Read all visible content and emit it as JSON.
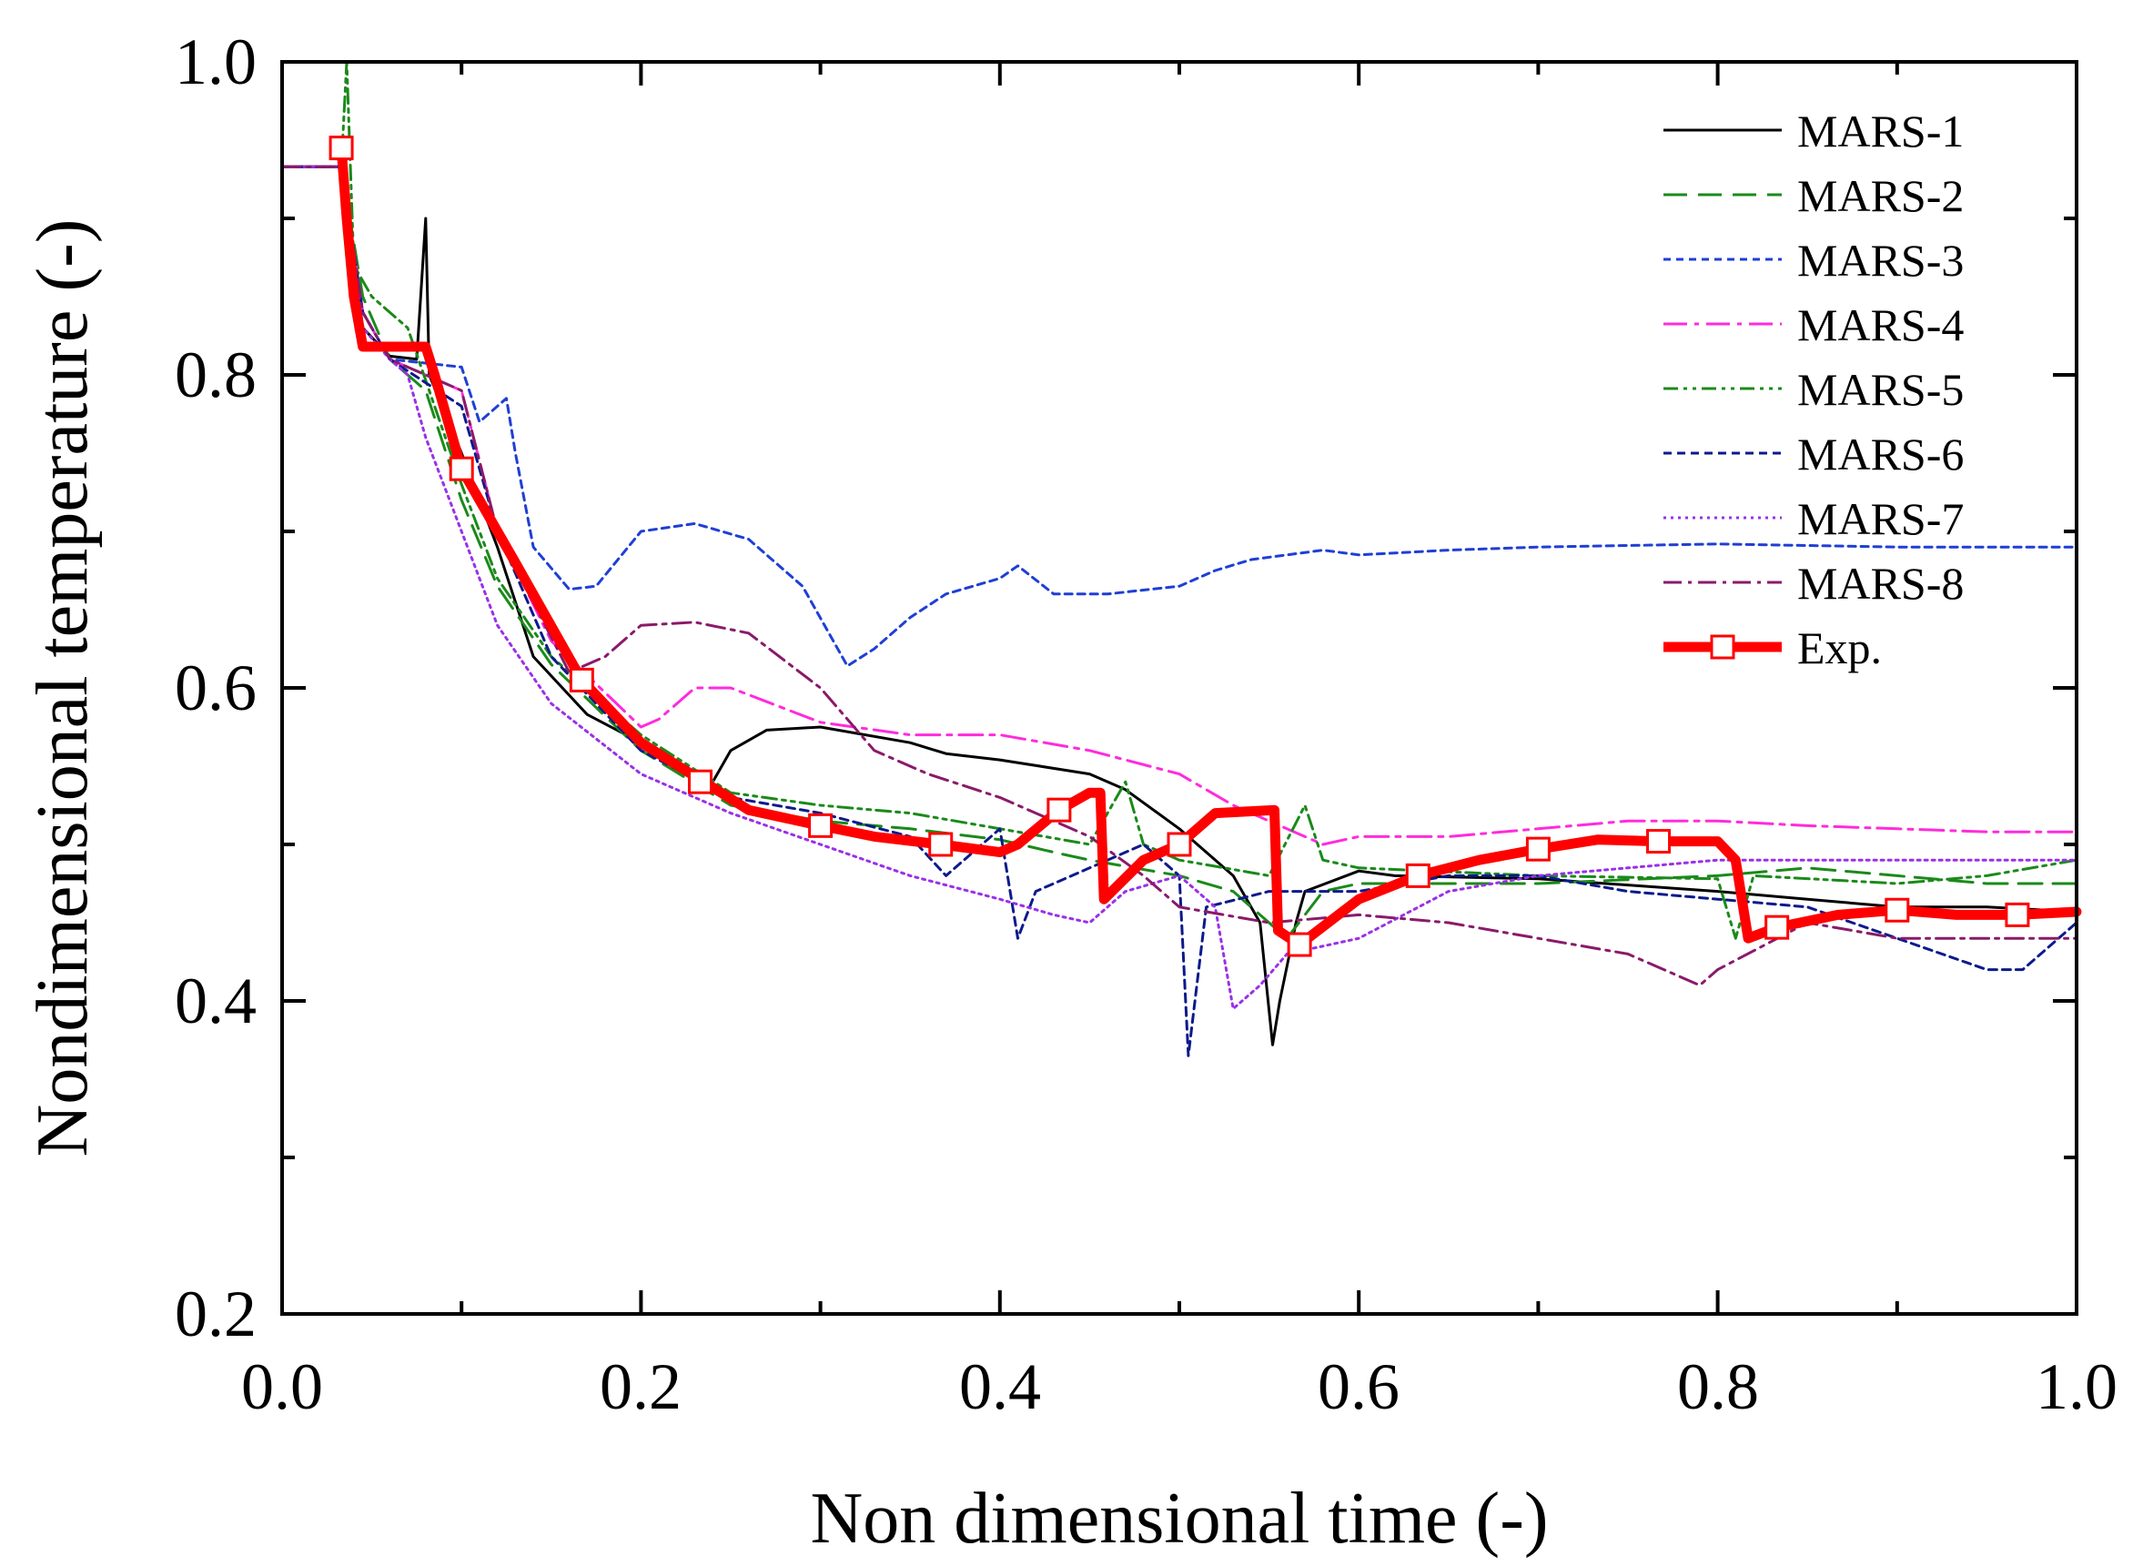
{
  "chart_data": {
    "type": "line",
    "title": "",
    "xlabel": "Non dimensional time (-)",
    "ylabel": "Nondimensional temperature (-)",
    "xlim": [
      0.0,
      1.0
    ],
    "ylim": [
      0.2,
      1.0
    ],
    "xticks": [
      "0.0",
      "0.2",
      "0.4",
      "0.6",
      "0.8",
      "1.0"
    ],
    "yticks": [
      "0.2",
      "0.4",
      "0.6",
      "0.8",
      "1.0"
    ],
    "legend_position": "top-right",
    "series": [
      {
        "name": "MARS-1",
        "color": "#000000",
        "dash": "solid",
        "width": 3,
        "points": [
          [
            0.0,
            0.933
          ],
          [
            0.033,
            0.933
          ],
          [
            0.045,
            0.83
          ],
          [
            0.06,
            0.812
          ],
          [
            0.075,
            0.81
          ],
          [
            0.08,
            0.9
          ],
          [
            0.082,
            0.8
          ],
          [
            0.1,
            0.75
          ],
          [
            0.12,
            0.69
          ],
          [
            0.14,
            0.62
          ],
          [
            0.17,
            0.583
          ],
          [
            0.2,
            0.565
          ],
          [
            0.24,
            0.54
          ],
          [
            0.25,
            0.56
          ],
          [
            0.27,
            0.573
          ],
          [
            0.3,
            0.575
          ],
          [
            0.35,
            0.565
          ],
          [
            0.37,
            0.558
          ],
          [
            0.4,
            0.554
          ],
          [
            0.45,
            0.545
          ],
          [
            0.47,
            0.535
          ],
          [
            0.5,
            0.51
          ],
          [
            0.53,
            0.48
          ],
          [
            0.545,
            0.45
          ],
          [
            0.552,
            0.372
          ],
          [
            0.556,
            0.4
          ],
          [
            0.565,
            0.45
          ],
          [
            0.57,
            0.47
          ],
          [
            0.6,
            0.483
          ],
          [
            0.62,
            0.48
          ],
          [
            0.7,
            0.478
          ],
          [
            0.8,
            0.47
          ],
          [
            0.85,
            0.465
          ],
          [
            0.9,
            0.46
          ],
          [
            0.95,
            0.46
          ],
          [
            1.0,
            0.457
          ]
        ]
      },
      {
        "name": "MARS-2",
        "color": "#1a8a1a",
        "dash": "26,12",
        "width": 3,
        "points": [
          [
            0.0,
            0.933
          ],
          [
            0.033,
            0.933
          ],
          [
            0.045,
            0.85
          ],
          [
            0.06,
            0.81
          ],
          [
            0.08,
            0.79
          ],
          [
            0.1,
            0.72
          ],
          [
            0.12,
            0.665
          ],
          [
            0.15,
            0.615
          ],
          [
            0.2,
            0.56
          ],
          [
            0.25,
            0.525
          ],
          [
            0.3,
            0.515
          ],
          [
            0.35,
            0.51
          ],
          [
            0.4,
            0.503
          ],
          [
            0.43,
            0.495
          ],
          [
            0.45,
            0.49
          ],
          [
            0.5,
            0.48
          ],
          [
            0.53,
            0.47
          ],
          [
            0.56,
            0.44
          ],
          [
            0.58,
            0.47
          ],
          [
            0.6,
            0.475
          ],
          [
            0.7,
            0.475
          ],
          [
            0.8,
            0.48
          ],
          [
            0.85,
            0.485
          ],
          [
            0.9,
            0.48
          ],
          [
            0.95,
            0.475
          ],
          [
            1.0,
            0.475
          ]
        ]
      },
      {
        "name": "MARS-3",
        "color": "#1f3fd6",
        "dash": "8,6",
        "width": 3,
        "points": [
          [
            0.0,
            0.933
          ],
          [
            0.033,
            0.933
          ],
          [
            0.045,
            0.84
          ],
          [
            0.06,
            0.81
          ],
          [
            0.1,
            0.805
          ],
          [
            0.11,
            0.77
          ],
          [
            0.125,
            0.785
          ],
          [
            0.13,
            0.75
          ],
          [
            0.14,
            0.69
          ],
          [
            0.16,
            0.663
          ],
          [
            0.175,
            0.665
          ],
          [
            0.2,
            0.7
          ],
          [
            0.23,
            0.705
          ],
          [
            0.26,
            0.695
          ],
          [
            0.29,
            0.665
          ],
          [
            0.315,
            0.614
          ],
          [
            0.33,
            0.625
          ],
          [
            0.35,
            0.645
          ],
          [
            0.37,
            0.66
          ],
          [
            0.4,
            0.67
          ],
          [
            0.41,
            0.678
          ],
          [
            0.43,
            0.66
          ],
          [
            0.46,
            0.66
          ],
          [
            0.5,
            0.665
          ],
          [
            0.52,
            0.675
          ],
          [
            0.54,
            0.682
          ],
          [
            0.58,
            0.688
          ],
          [
            0.6,
            0.685
          ],
          [
            0.65,
            0.688
          ],
          [
            0.7,
            0.69
          ],
          [
            0.8,
            0.692
          ],
          [
            0.9,
            0.69
          ],
          [
            1.0,
            0.69
          ]
        ]
      },
      {
        "name": "MARS-4",
        "color": "#ff2bdc",
        "dash": "26,8,5,8",
        "width": 3,
        "points": [
          [
            0.0,
            0.933
          ],
          [
            0.033,
            0.933
          ],
          [
            0.045,
            0.84
          ],
          [
            0.06,
            0.81
          ],
          [
            0.1,
            0.79
          ],
          [
            0.12,
            0.7
          ],
          [
            0.15,
            0.63
          ],
          [
            0.2,
            0.575
          ],
          [
            0.21,
            0.58
          ],
          [
            0.23,
            0.6
          ],
          [
            0.25,
            0.6
          ],
          [
            0.3,
            0.578
          ],
          [
            0.35,
            0.57
          ],
          [
            0.4,
            0.57
          ],
          [
            0.45,
            0.56
          ],
          [
            0.5,
            0.545
          ],
          [
            0.53,
            0.525
          ],
          [
            0.55,
            0.515
          ],
          [
            0.58,
            0.5
          ],
          [
            0.6,
            0.505
          ],
          [
            0.65,
            0.505
          ],
          [
            0.7,
            0.51
          ],
          [
            0.75,
            0.515
          ],
          [
            0.8,
            0.515
          ],
          [
            0.85,
            0.512
          ],
          [
            0.9,
            0.51
          ],
          [
            0.95,
            0.508
          ],
          [
            1.0,
            0.508
          ]
        ]
      },
      {
        "name": "MARS-5",
        "color": "#1a8a1a",
        "dash": "16,6,4,6,4,6",
        "width": 3,
        "points": [
          [
            0.0,
            0.933
          ],
          [
            0.033,
            0.933
          ],
          [
            0.036,
            1.0
          ],
          [
            0.04,
            0.87
          ],
          [
            0.05,
            0.85
          ],
          [
            0.07,
            0.83
          ],
          [
            0.1,
            0.73
          ],
          [
            0.12,
            0.67
          ],
          [
            0.15,
            0.62
          ],
          [
            0.2,
            0.57
          ],
          [
            0.25,
            0.533
          ],
          [
            0.3,
            0.525
          ],
          [
            0.35,
            0.52
          ],
          [
            0.4,
            0.51
          ],
          [
            0.45,
            0.5
          ],
          [
            0.47,
            0.54
          ],
          [
            0.48,
            0.5
          ],
          [
            0.5,
            0.49
          ],
          [
            0.55,
            0.48
          ],
          [
            0.57,
            0.525
          ],
          [
            0.58,
            0.49
          ],
          [
            0.6,
            0.485
          ],
          [
            0.7,
            0.48
          ],
          [
            0.8,
            0.478
          ],
          [
            0.81,
            0.44
          ],
          [
            0.82,
            0.48
          ],
          [
            0.9,
            0.475
          ],
          [
            0.95,
            0.48
          ],
          [
            1.0,
            0.49
          ]
        ]
      },
      {
        "name": "MARS-6",
        "color": "#0c1a8c",
        "dash": "9,6",
        "width": 3,
        "points": [
          [
            0.0,
            0.933
          ],
          [
            0.033,
            0.933
          ],
          [
            0.045,
            0.84
          ],
          [
            0.06,
            0.81
          ],
          [
            0.1,
            0.78
          ],
          [
            0.12,
            0.7
          ],
          [
            0.15,
            0.62
          ],
          [
            0.2,
            0.56
          ],
          [
            0.25,
            0.53
          ],
          [
            0.3,
            0.52
          ],
          [
            0.35,
            0.505
          ],
          [
            0.37,
            0.48
          ],
          [
            0.4,
            0.51
          ],
          [
            0.41,
            0.44
          ],
          [
            0.42,
            0.47
          ],
          [
            0.45,
            0.485
          ],
          [
            0.48,
            0.5
          ],
          [
            0.5,
            0.48
          ],
          [
            0.505,
            0.365
          ],
          [
            0.515,
            0.46
          ],
          [
            0.55,
            0.47
          ],
          [
            0.6,
            0.47
          ],
          [
            0.65,
            0.48
          ],
          [
            0.7,
            0.48
          ],
          [
            0.75,
            0.47
          ],
          [
            0.8,
            0.465
          ],
          [
            0.85,
            0.46
          ],
          [
            0.9,
            0.44
          ],
          [
            0.95,
            0.42
          ],
          [
            0.97,
            0.42
          ],
          [
            1.0,
            0.45
          ]
        ]
      },
      {
        "name": "MARS-7",
        "color": "#9a30e8",
        "dash": "3,5",
        "width": 3,
        "points": [
          [
            0.0,
            0.933
          ],
          [
            0.033,
            0.933
          ],
          [
            0.045,
            0.83
          ],
          [
            0.06,
            0.81
          ],
          [
            0.07,
            0.8
          ],
          [
            0.08,
            0.76
          ],
          [
            0.1,
            0.7
          ],
          [
            0.12,
            0.64
          ],
          [
            0.15,
            0.59
          ],
          [
            0.2,
            0.545
          ],
          [
            0.25,
            0.52
          ],
          [
            0.3,
            0.5
          ],
          [
            0.35,
            0.48
          ],
          [
            0.4,
            0.465
          ],
          [
            0.43,
            0.455
          ],
          [
            0.45,
            0.45
          ],
          [
            0.47,
            0.47
          ],
          [
            0.5,
            0.48
          ],
          [
            0.52,
            0.46
          ],
          [
            0.53,
            0.395
          ],
          [
            0.545,
            0.41
          ],
          [
            0.56,
            0.43
          ],
          [
            0.6,
            0.44
          ],
          [
            0.65,
            0.47
          ],
          [
            0.7,
            0.48
          ],
          [
            0.8,
            0.49
          ],
          [
            0.9,
            0.49
          ],
          [
            1.0,
            0.49
          ]
        ]
      },
      {
        "name": "MARS-8",
        "color": "#8a1a6a",
        "dash": "20,7,4,7",
        "width": 3,
        "points": [
          [
            0.0,
            0.933
          ],
          [
            0.033,
            0.933
          ],
          [
            0.045,
            0.84
          ],
          [
            0.06,
            0.81
          ],
          [
            0.1,
            0.79
          ],
          [
            0.12,
            0.7
          ],
          [
            0.16,
            0.61
          ],
          [
            0.18,
            0.62
          ],
          [
            0.2,
            0.64
          ],
          [
            0.23,
            0.642
          ],
          [
            0.26,
            0.635
          ],
          [
            0.3,
            0.6
          ],
          [
            0.33,
            0.56
          ],
          [
            0.36,
            0.545
          ],
          [
            0.4,
            0.53
          ],
          [
            0.45,
            0.505
          ],
          [
            0.48,
            0.48
          ],
          [
            0.5,
            0.46
          ],
          [
            0.55,
            0.45
          ],
          [
            0.6,
            0.455
          ],
          [
            0.65,
            0.45
          ],
          [
            0.7,
            0.44
          ],
          [
            0.75,
            0.43
          ],
          [
            0.79,
            0.41
          ],
          [
            0.8,
            0.42
          ],
          [
            0.85,
            0.45
          ],
          [
            0.9,
            0.44
          ],
          [
            0.95,
            0.44
          ],
          [
            1.0,
            0.44
          ]
        ]
      },
      {
        "name": "Exp.",
        "color": "#ff0000",
        "dash": "solid",
        "width": 11,
        "points": [
          [
            0.033,
            0.945
          ],
          [
            0.036,
            0.9
          ],
          [
            0.04,
            0.85
          ],
          [
            0.045,
            0.818
          ],
          [
            0.06,
            0.818
          ],
          [
            0.08,
            0.818
          ],
          [
            0.085,
            0.8
          ],
          [
            0.1,
            0.74
          ],
          [
            0.13,
            0.68
          ],
          [
            0.167,
            0.605
          ],
          [
            0.2,
            0.565
          ],
          [
            0.235,
            0.54
          ],
          [
            0.26,
            0.522
          ],
          [
            0.3,
            0.512
          ],
          [
            0.33,
            0.505
          ],
          [
            0.367,
            0.5
          ],
          [
            0.4,
            0.495
          ],
          [
            0.41,
            0.5
          ],
          [
            0.433,
            0.522
          ],
          [
            0.45,
            0.533
          ],
          [
            0.456,
            0.533
          ],
          [
            0.458,
            0.465
          ],
          [
            0.48,
            0.49
          ],
          [
            0.5,
            0.5
          ],
          [
            0.52,
            0.52
          ],
          [
            0.553,
            0.522
          ],
          [
            0.555,
            0.445
          ],
          [
            0.567,
            0.436
          ],
          [
            0.6,
            0.465
          ],
          [
            0.633,
            0.48
          ],
          [
            0.667,
            0.49
          ],
          [
            0.7,
            0.497
          ],
          [
            0.733,
            0.503
          ],
          [
            0.767,
            0.502
          ],
          [
            0.8,
            0.502
          ],
          [
            0.81,
            0.49
          ],
          [
            0.817,
            0.44
          ],
          [
            0.833,
            0.447
          ],
          [
            0.867,
            0.455
          ],
          [
            0.9,
            0.458
          ],
          [
            0.933,
            0.455
          ],
          [
            0.967,
            0.455
          ],
          [
            1.0,
            0.457
          ]
        ],
        "markers": [
          [
            0.033,
            0.945
          ],
          [
            0.1,
            0.74
          ],
          [
            0.167,
            0.605
          ],
          [
            0.233,
            0.54
          ],
          [
            0.3,
            0.512
          ],
          [
            0.367,
            0.5
          ],
          [
            0.433,
            0.522
          ],
          [
            0.5,
            0.5
          ],
          [
            0.567,
            0.436
          ],
          [
            0.633,
            0.48
          ],
          [
            0.7,
            0.497
          ],
          [
            0.767,
            0.502
          ],
          [
            0.833,
            0.447
          ],
          [
            0.9,
            0.458
          ],
          [
            0.967,
            0.455
          ]
        ]
      }
    ]
  }
}
